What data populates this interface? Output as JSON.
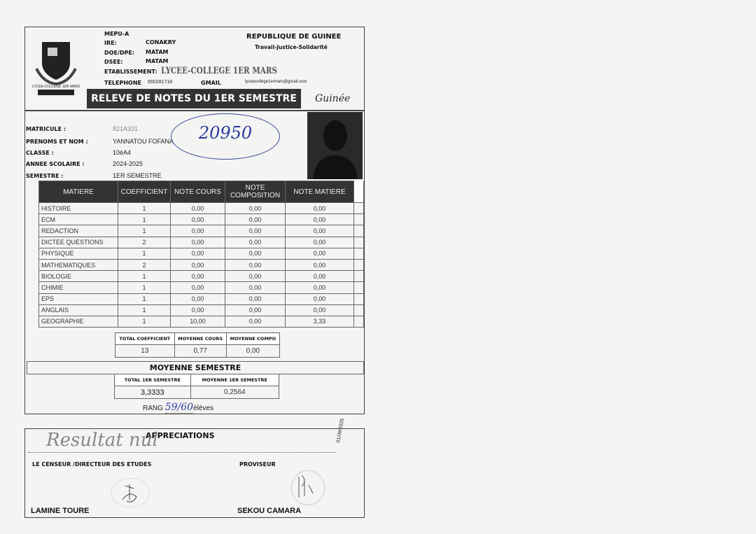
{
  "header": {
    "mepu": "MEPU-A",
    "ire_label": "IRE:",
    "ire": "CONAKRY",
    "doe_label": "DOE/DPE:",
    "doe": "MATAM",
    "dsee_label": "DSEE:",
    "dsee": "MATAM",
    "etab_label": "ETABLISSEMENT:",
    "etablissement": "LYCEE-COLLEGE 1ER MARS",
    "tel_label": "TELEPHONE",
    "telephone": "650281718",
    "gmail_label": "GMAIL",
    "gmail": "lyceecollege1ermars@gmail.com",
    "republic": "REPUBLIQUE DE GUINEE",
    "motto": "Travail-Justice-Solidarité",
    "logo_text": "LYCEE-COLLEGE 1ER MARS",
    "title": "RELEVE DE NOTES DU 1ER SEMESTRE",
    "guinee_logo": "Guinée"
  },
  "student": {
    "matricule_label": "MATRICULE :",
    "matricule": "821A331",
    "nom_label": "PRENOMS ET NOM :",
    "nom": "YANNATOU FOFANA",
    "classe_label": "CLASSE :",
    "classe": "10èA4",
    "annee_label": "ANNEE SCOLAIRE :",
    "annee": "2024-2025",
    "semestre_label": "SEMESTRE :",
    "semestre": "1ER SEMESTRE",
    "handwritten_number": "20950"
  },
  "table": {
    "headers": [
      "MATIERE",
      "COEFFICIENT",
      "NOTE COURS",
      "NOTE COMPOSITION",
      "NOTE MATIERE"
    ],
    "rows": [
      [
        "HISTOIRE",
        "1",
        "0,00",
        "0,00",
        "0,00"
      ],
      [
        "ECM",
        "1",
        "0,00",
        "0,00",
        "0,00"
      ],
      [
        "REDACTION",
        "1",
        "0,00",
        "0,00",
        "0,00"
      ],
      [
        "DICTEE QUESTIONS",
        "2",
        "0,00",
        "0,00",
        "0,00"
      ],
      [
        "PHYSIQUE",
        "1",
        "0,00",
        "0,00",
        "0,00"
      ],
      [
        "MATHEMATIQUES",
        "2",
        "0,00",
        "0,00",
        "0,00"
      ],
      [
        "BIOLOGIE",
        "1",
        "0,00",
        "0,00",
        "0,00"
      ],
      [
        "CHIMIE",
        "1",
        "0,00",
        "0,00",
        "0,00"
      ],
      [
        "EPS",
        "1",
        "0,00",
        "0,00",
        "0,00"
      ],
      [
        "ANGLAIS",
        "1",
        "0,00",
        "0,00",
        "0,00"
      ],
      [
        "GEOGRAPHIE",
        "1",
        "10,00",
        "0,00",
        "3,33"
      ]
    ]
  },
  "totals": {
    "headers": [
      "TOTAL COEFFICIENT",
      "MOYENNE COURS",
      "MOYENNE COMPO"
    ],
    "values": [
      "13",
      "0,77",
      "0,00"
    ]
  },
  "semestre": {
    "title": "MOYENNE SEMESTRE",
    "headers": [
      "TOTAL 1ER SEMESTRE",
      "MOYENNE 1ER SEMESTRE"
    ],
    "values": [
      "3,3333",
      "0,2564"
    ],
    "rang_label": "RANG",
    "rang": "59/60",
    "eleves": "élèves"
  },
  "appreciations": {
    "title": "APPRECIATIONS",
    "handwritten": "Resultat nul",
    "date": "01/09/2025",
    "censeur_label": "LE CENSEUR /DIRECTEUR DES ETUDES",
    "censeur": "LAMINE TOURE",
    "proviseur_label": "PROVISEUR",
    "proviseur": "SEKOU CAMARA"
  }
}
